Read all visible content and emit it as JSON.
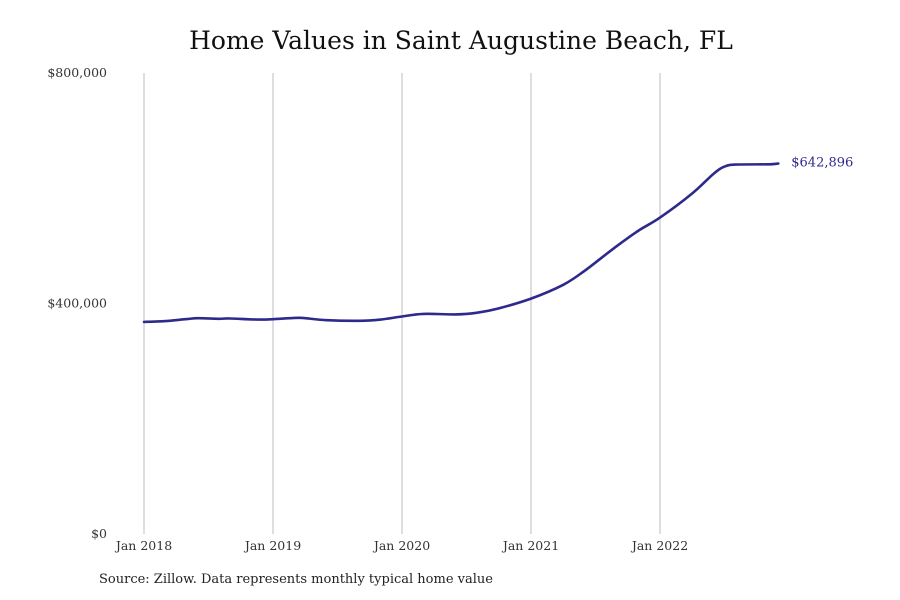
{
  "chart_data": {
    "type": "line",
    "title": "Home Values in Saint Augustine Beach, FL",
    "xlabel": "",
    "ylabel": "",
    "x_ticks": [
      "Jan 2018",
      "Jan 2019",
      "Jan 2020",
      "Jan 2021",
      "Jan 2022"
    ],
    "y_ticks": [
      "$0",
      "$400,000",
      "$800,000"
    ],
    "ylim": [
      0,
      800000
    ],
    "xlim": [
      "2018-01",
      "2022-12"
    ],
    "grid": "vertical",
    "legend": "none",
    "end_label": "$642,896",
    "series": [
      {
        "color": "#2e2a8c",
        "points": [
          [
            "2018-01",
            368000
          ],
          [
            "2018-03",
            369500
          ],
          [
            "2018-05",
            373000
          ],
          [
            "2018-06",
            374500
          ],
          [
            "2018-08",
            373500
          ],
          [
            "2018-09",
            374000
          ],
          [
            "2018-12",
            372000
          ],
          [
            "2019-03",
            375000
          ],
          [
            "2019-04",
            374500
          ],
          [
            "2019-06",
            371000
          ],
          [
            "2019-09",
            370000
          ],
          [
            "2019-11",
            372000
          ],
          [
            "2020-01",
            377500
          ],
          [
            "2020-03",
            382000
          ],
          [
            "2020-06",
            381000
          ],
          [
            "2020-08",
            384000
          ],
          [
            "2020-10",
            391500
          ],
          [
            "2021-01",
            408500
          ],
          [
            "2021-04",
            432500
          ],
          [
            "2021-06",
            457000
          ],
          [
            "2021-09",
            500000
          ],
          [
            "2021-11",
            526500
          ],
          [
            "2022-01",
            549000
          ],
          [
            "2022-04",
            591000
          ],
          [
            "2022-06",
            625500
          ],
          [
            "2022-07",
            637500
          ],
          [
            "2022-08",
            641000
          ],
          [
            "2022-11",
            641500
          ],
          [
            "2022-12",
            642896
          ]
        ]
      }
    ]
  },
  "source_note": "Source: Zillow. Data represents monthly typical home value"
}
